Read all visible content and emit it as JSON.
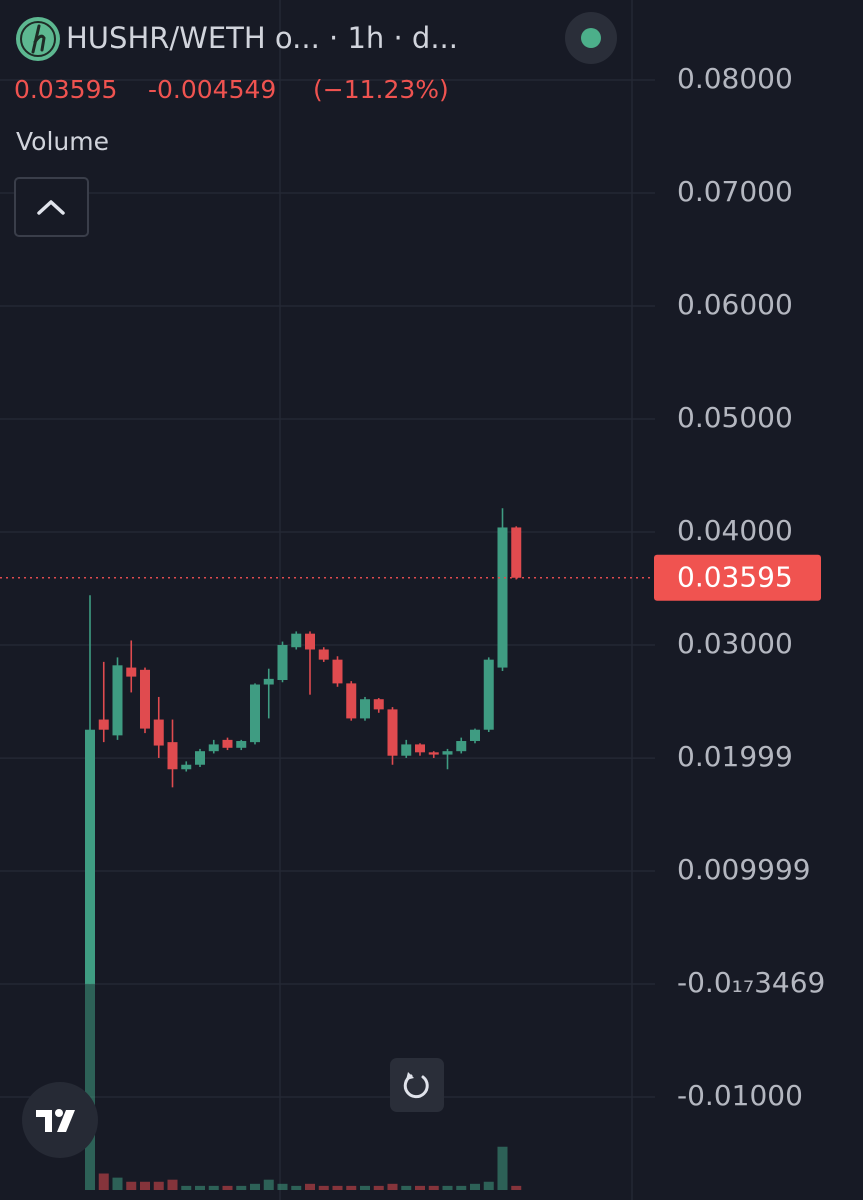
{
  "chart_data": {
    "type": "candlestick",
    "title": "HUSHR/WETH o...  · 1h · d...",
    "last_price": 0.03595,
    "change": -0.004549,
    "change_percent": "(−11.23%)",
    "volume_label": "Volume",
    "up_color": "#3f9c82",
    "down_color": "#e04b4f",
    "grid": true,
    "ylim": [
      -0.01912,
      0.08708
    ],
    "yticks": [
      {
        "value": 0.08,
        "label": "0.08000"
      },
      {
        "value": 0.07,
        "label": "0.07000"
      },
      {
        "value": 0.06,
        "label": "0.06000"
      },
      {
        "value": 0.05,
        "label": "0.05000"
      },
      {
        "value": 0.04,
        "label": "0.04000"
      },
      {
        "value": 0.03,
        "label": "0.03000"
      },
      0.01999,
      0.009999,
      {
        "value": -3.469e-19,
        "label": "-0.0₁₇3469"
      },
      {
        "value": -0.01,
        "label": "-0.01000"
      }
    ],
    "open": [
      0,
      0.0234,
      0.022,
      0.028,
      0.0278,
      0.0234,
      0.0214,
      0.019,
      0.0194,
      0.0206,
      0.0216,
      0.0209,
      0.0214,
      0.0265,
      0.0269,
      0.0298,
      0.031,
      0.0296,
      0.0287,
      0.0266,
      0.0235,
      0.0252,
      0.0243,
      0.0202,
      0.0212,
      0.0205,
      0.0203,
      0.0206,
      0.0215,
      0.0225,
      0.028,
      0.0404
    ],
    "high": [
      0.0344,
      0.0285,
      0.0289,
      0.0304,
      0.028,
      0.0254,
      0.0234,
      0.0197,
      0.0208,
      0.0216,
      0.0218,
      0.0216,
      0.0266,
      0.0279,
      0.0303,
      0.0312,
      0.0312,
      0.0298,
      0.029,
      0.0268,
      0.0254,
      0.0253,
      0.0245,
      0.0216,
      0.0213,
      0.0206,
      0.0208,
      0.0218,
      0.0226,
      0.0289,
      0.0421,
      0.0405
    ],
    "low": [
      0,
      0.0214,
      0.0216,
      0.0258,
      0.0222,
      0.02,
      0.0174,
      0.0188,
      0.0192,
      0.0204,
      0.0207,
      0.0207,
      0.0212,
      0.0235,
      0.0267,
      0.0296,
      0.0256,
      0.0285,
      0.0263,
      0.0233,
      0.0233,
      0.024,
      0.0194,
      0.02,
      0.0202,
      0.02,
      0.019,
      0.0204,
      0.0213,
      0.0223,
      0.0277,
      0.0358
    ],
    "close": [
      0.0225,
      0.0225,
      0.0282,
      0.0272,
      0.0226,
      0.0211,
      0.019,
      0.0194,
      0.0206,
      0.0212,
      0.0209,
      0.0215,
      0.0265,
      0.027,
      0.03,
      0.031,
      0.0296,
      0.0287,
      0.0266,
      0.0235,
      0.0252,
      0.0243,
      0.0202,
      0.0212,
      0.0205,
      0.0203,
      0.0206,
      0.0215,
      0.0225,
      0.0287,
      0.0404,
      0.03595
    ],
    "volume": [
      100,
      8,
      6,
      4,
      4,
      4,
      5,
      2,
      2,
      2,
      2,
      2,
      3,
      5,
      3,
      2,
      3,
      2,
      2,
      2,
      2,
      2,
      3,
      2,
      2,
      2,
      2,
      2,
      3,
      4,
      21,
      2
    ]
  }
}
